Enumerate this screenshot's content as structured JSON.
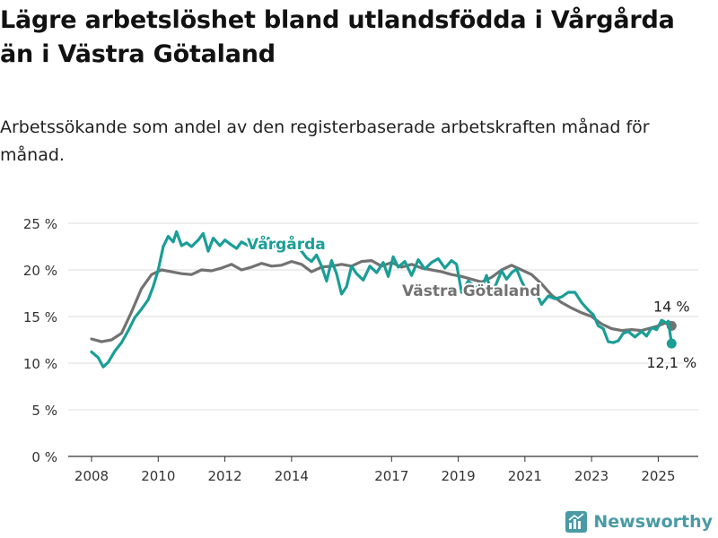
{
  "title": "Lägre arbetslöshet bland utlandsfödda i Vårgårda än i Västra Götaland",
  "subtitle": "Arbetssökande som andel av den registerbaserade arbetskraften månad för månad.",
  "brand": "Newsworthy",
  "chart_data": {
    "type": "line",
    "ylim": [
      0,
      25
    ],
    "y_ticks": [
      0,
      5,
      10,
      15,
      20,
      25
    ],
    "y_tick_labels": [
      "0 %",
      "5 %",
      "10 %",
      "15 %",
      "20 %",
      "25 %"
    ],
    "x_ticks": [
      2008,
      2010,
      2012,
      2014,
      2017,
      2019,
      2021,
      2023,
      2025
    ],
    "x_tick_labels": [
      "2008",
      "2010",
      "2012",
      "2014",
      "2017",
      "2019",
      "2021",
      "2023",
      "2025"
    ],
    "xlim": [
      2007.3,
      2026.2
    ],
    "grid": true,
    "series": [
      {
        "name": "Västra Götaland",
        "color": "#727272",
        "end_label": "14 %",
        "points": [
          [
            2008.0,
            12.6
          ],
          [
            2008.3,
            12.3
          ],
          [
            2008.6,
            12.5
          ],
          [
            2008.9,
            13.2
          ],
          [
            2009.2,
            15.5
          ],
          [
            2009.5,
            18.0
          ],
          [
            2009.8,
            19.5
          ],
          [
            2010.1,
            20.0
          ],
          [
            2010.4,
            19.8
          ],
          [
            2010.7,
            19.6
          ],
          [
            2011.0,
            19.5
          ],
          [
            2011.3,
            20.0
          ],
          [
            2011.6,
            19.9
          ],
          [
            2011.9,
            20.2
          ],
          [
            2012.2,
            20.6
          ],
          [
            2012.5,
            20.0
          ],
          [
            2012.8,
            20.3
          ],
          [
            2013.1,
            20.7
          ],
          [
            2013.4,
            20.4
          ],
          [
            2013.7,
            20.5
          ],
          [
            2014.0,
            20.9
          ],
          [
            2014.3,
            20.6
          ],
          [
            2014.6,
            19.8
          ],
          [
            2014.9,
            20.3
          ],
          [
            2015.2,
            20.4
          ],
          [
            2015.5,
            20.6
          ],
          [
            2015.8,
            20.4
          ],
          [
            2016.1,
            20.9
          ],
          [
            2016.4,
            21.0
          ],
          [
            2016.7,
            20.4
          ],
          [
            2017.0,
            20.8
          ],
          [
            2017.3,
            20.3
          ],
          [
            2017.6,
            20.6
          ],
          [
            2017.9,
            20.2
          ],
          [
            2018.2,
            20.0
          ],
          [
            2018.5,
            19.8
          ],
          [
            2018.8,
            19.5
          ],
          [
            2019.1,
            19.3
          ],
          [
            2019.4,
            19.0
          ],
          [
            2019.7,
            18.7
          ],
          [
            2020.0,
            19.2
          ],
          [
            2020.3,
            20.0
          ],
          [
            2020.6,
            20.5
          ],
          [
            2020.9,
            20.0
          ],
          [
            2021.2,
            19.5
          ],
          [
            2021.5,
            18.5
          ],
          [
            2021.8,
            17.3
          ],
          [
            2022.1,
            16.5
          ],
          [
            2022.4,
            15.9
          ],
          [
            2022.7,
            15.4
          ],
          [
            2023.0,
            15.0
          ],
          [
            2023.3,
            14.2
          ],
          [
            2023.6,
            13.7
          ],
          [
            2023.9,
            13.5
          ],
          [
            2024.2,
            13.6
          ],
          [
            2024.5,
            13.5
          ],
          [
            2024.8,
            13.8
          ],
          [
            2025.0,
            14.0
          ],
          [
            2025.2,
            14.3
          ],
          [
            2025.4,
            14.0
          ]
        ]
      },
      {
        "name": "Vårgårda",
        "color": "#1a9e96",
        "end_label": "12,1 %",
        "points": [
          [
            2008.0,
            11.2
          ],
          [
            2008.2,
            10.6
          ],
          [
            2008.35,
            9.6
          ],
          [
            2008.5,
            10.1
          ],
          [
            2008.7,
            11.3
          ],
          [
            2008.9,
            12.2
          ],
          [
            2009.1,
            13.5
          ],
          [
            2009.3,
            14.9
          ],
          [
            2009.5,
            15.8
          ],
          [
            2009.7,
            16.8
          ],
          [
            2009.85,
            18.2
          ],
          [
            2010.0,
            20.0
          ],
          [
            2010.15,
            22.5
          ],
          [
            2010.3,
            23.6
          ],
          [
            2010.45,
            23.0
          ],
          [
            2010.55,
            24.1
          ],
          [
            2010.7,
            22.6
          ],
          [
            2010.85,
            22.9
          ],
          [
            2011.0,
            22.5
          ],
          [
            2011.2,
            23.2
          ],
          [
            2011.35,
            23.9
          ],
          [
            2011.5,
            22.0
          ],
          [
            2011.65,
            23.4
          ],
          [
            2011.85,
            22.6
          ],
          [
            2012.0,
            23.2
          ],
          [
            2012.15,
            22.8
          ],
          [
            2012.35,
            22.3
          ],
          [
            2012.5,
            23.0
          ],
          [
            2012.7,
            22.6
          ],
          [
            2012.9,
            23.3
          ],
          [
            2013.1,
            22.6
          ],
          [
            2013.3,
            23.4
          ],
          [
            2013.5,
            22.5
          ],
          [
            2013.7,
            22.8
          ],
          [
            2013.9,
            23.0
          ],
          [
            2014.1,
            22.8
          ],
          [
            2014.3,
            22.0
          ],
          [
            2014.45,
            21.3
          ],
          [
            2014.6,
            20.9
          ],
          [
            2014.75,
            21.6
          ],
          [
            2014.9,
            20.4
          ],
          [
            2015.05,
            18.8
          ],
          [
            2015.2,
            21.0
          ],
          [
            2015.35,
            19.6
          ],
          [
            2015.5,
            17.4
          ],
          [
            2015.65,
            18.2
          ],
          [
            2015.8,
            20.4
          ],
          [
            2015.95,
            19.6
          ],
          [
            2016.15,
            18.9
          ],
          [
            2016.35,
            20.4
          ],
          [
            2016.55,
            19.7
          ],
          [
            2016.75,
            20.8
          ],
          [
            2016.9,
            19.3
          ],
          [
            2017.05,
            21.4
          ],
          [
            2017.2,
            20.3
          ],
          [
            2017.4,
            20.9
          ],
          [
            2017.6,
            19.4
          ],
          [
            2017.8,
            21.1
          ],
          [
            2018.0,
            20.1
          ],
          [
            2018.2,
            20.8
          ],
          [
            2018.4,
            21.2
          ],
          [
            2018.6,
            20.2
          ],
          [
            2018.8,
            21.0
          ],
          [
            2018.95,
            20.6
          ],
          [
            2019.1,
            17.6
          ],
          [
            2019.3,
            18.8
          ],
          [
            2019.5,
            18.2
          ],
          [
            2019.7,
            18.0
          ],
          [
            2019.85,
            19.4
          ],
          [
            2020.0,
            17.4
          ],
          [
            2020.15,
            18.6
          ],
          [
            2020.3,
            19.9
          ],
          [
            2020.45,
            19.0
          ],
          [
            2020.6,
            19.7
          ],
          [
            2020.75,
            20.1
          ],
          [
            2020.9,
            18.8
          ],
          [
            2021.1,
            17.4
          ],
          [
            2021.3,
            17.9
          ],
          [
            2021.5,
            16.3
          ],
          [
            2021.7,
            17.2
          ],
          [
            2021.9,
            16.9
          ],
          [
            2022.1,
            17.1
          ],
          [
            2022.3,
            17.6
          ],
          [
            2022.5,
            17.6
          ],
          [
            2022.7,
            16.5
          ],
          [
            2022.9,
            15.7
          ],
          [
            2023.05,
            15.2
          ],
          [
            2023.2,
            14.0
          ],
          [
            2023.35,
            13.7
          ],
          [
            2023.5,
            12.3
          ],
          [
            2023.65,
            12.2
          ],
          [
            2023.8,
            12.4
          ],
          [
            2023.95,
            13.2
          ],
          [
            2024.1,
            13.4
          ],
          [
            2024.3,
            12.8
          ],
          [
            2024.5,
            13.4
          ],
          [
            2024.65,
            12.9
          ],
          [
            2024.8,
            13.8
          ],
          [
            2024.95,
            13.6
          ],
          [
            2025.1,
            14.6
          ],
          [
            2025.25,
            14.3
          ],
          [
            2025.3,
            14.5
          ],
          [
            2025.4,
            12.1
          ]
        ]
      }
    ]
  }
}
